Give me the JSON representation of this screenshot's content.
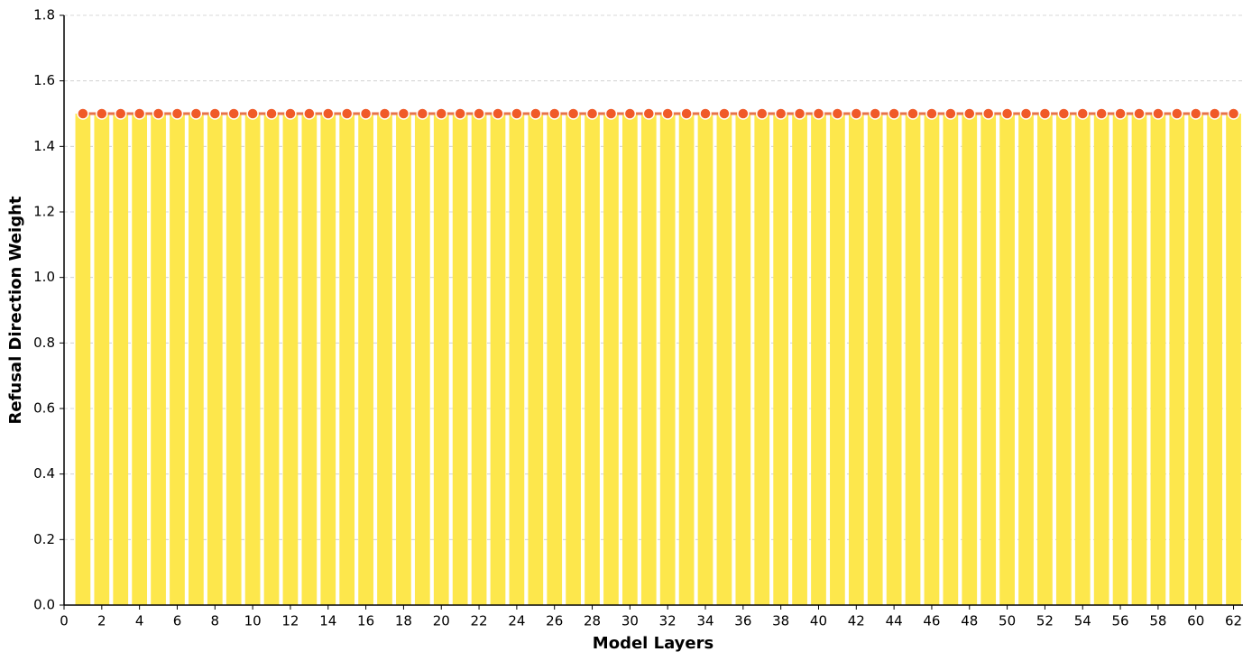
{
  "chart_data": {
    "type": "bar",
    "xlabel": "Model Layers",
    "ylabel": "Refusal Direction Weight",
    "x": [
      1,
      2,
      3,
      4,
      5,
      6,
      7,
      8,
      9,
      10,
      11,
      12,
      13,
      14,
      15,
      16,
      17,
      18,
      19,
      20,
      21,
      22,
      23,
      24,
      25,
      26,
      27,
      28,
      29,
      30,
      31,
      32,
      33,
      34,
      35,
      36,
      37,
      38,
      39,
      40,
      41,
      42,
      43,
      44,
      45,
      46,
      47,
      48,
      49,
      50,
      51,
      52,
      53,
      54,
      55,
      56,
      57,
      58,
      59,
      60,
      61,
      62
    ],
    "series": [
      {
        "type": "bar",
        "color": "#fde74c",
        "values": [
          1.5,
          1.5,
          1.5,
          1.5,
          1.5,
          1.5,
          1.5,
          1.5,
          1.5,
          1.5,
          1.5,
          1.5,
          1.5,
          1.5,
          1.5,
          1.5,
          1.5,
          1.5,
          1.5,
          1.5,
          1.5,
          1.5,
          1.5,
          1.5,
          1.5,
          1.5,
          1.5,
          1.5,
          1.5,
          1.5,
          1.5,
          1.5,
          1.5,
          1.5,
          1.5,
          1.5,
          1.5,
          1.5,
          1.5,
          1.5,
          1.5,
          1.5,
          1.5,
          1.5,
          1.5,
          1.5,
          1.5,
          1.5,
          1.5,
          1.5,
          1.5,
          1.5,
          1.5,
          1.5,
          1.5,
          1.5,
          1.5,
          1.5,
          1.5,
          1.5,
          1.5,
          1.5
        ]
      },
      {
        "type": "line",
        "color": "#e8734a",
        "marker_color": "#f05a28",
        "values": [
          1.5,
          1.5,
          1.5,
          1.5,
          1.5,
          1.5,
          1.5,
          1.5,
          1.5,
          1.5,
          1.5,
          1.5,
          1.5,
          1.5,
          1.5,
          1.5,
          1.5,
          1.5,
          1.5,
          1.5,
          1.5,
          1.5,
          1.5,
          1.5,
          1.5,
          1.5,
          1.5,
          1.5,
          1.5,
          1.5,
          1.5,
          1.5,
          1.5,
          1.5,
          1.5,
          1.5,
          1.5,
          1.5,
          1.5,
          1.5,
          1.5,
          1.5,
          1.5,
          1.5,
          1.5,
          1.5,
          1.5,
          1.5,
          1.5,
          1.5,
          1.5,
          1.5,
          1.5,
          1.5,
          1.5,
          1.5,
          1.5,
          1.5,
          1.5,
          1.5,
          1.5,
          1.5
        ]
      }
    ],
    "xlim": [
      0,
      62.5
    ],
    "xticks": [
      0,
      2,
      4,
      6,
      8,
      10,
      12,
      14,
      16,
      18,
      20,
      22,
      24,
      26,
      28,
      30,
      32,
      34,
      36,
      38,
      40,
      42,
      44,
      46,
      48,
      50,
      52,
      54,
      56,
      58,
      60,
      62
    ],
    "ylim": [
      0,
      1.8
    ],
    "yticks": [
      {
        "value": 0,
        "label": "0.0"
      },
      {
        "value": 0.2,
        "label": "0.2"
      },
      {
        "value": 0.4,
        "label": "0.4"
      },
      {
        "value": 0.6,
        "label": "0.6"
      },
      {
        "value": 0.8,
        "label": "0.8"
      },
      {
        "value": 1,
        "label": "1.0"
      },
      {
        "value": 1.2,
        "label": "1.2"
      },
      {
        "value": 1.4,
        "label": "1.4"
      },
      {
        "value": 1.6,
        "label": "1.6"
      },
      {
        "value": 1.8,
        "label": "1.8"
      }
    ],
    "grid": true
  }
}
